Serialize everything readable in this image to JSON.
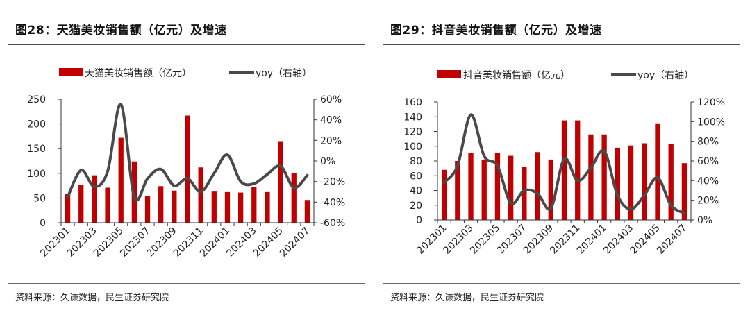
{
  "colors": {
    "bar": "#c00000",
    "line": "#4a4a4a",
    "axis": "#333333",
    "rule": "#4d4d4d"
  },
  "panels": [
    {
      "id": "left",
      "title": "图28：天猫美妆销售额（亿元）及增速",
      "source": "资料来源：久谦数据，民生证券研究院",
      "legend": {
        "bar_label": "天猫美妆销售额（亿元）",
        "line_label": "yoy（右轴）"
      }
    },
    {
      "id": "right",
      "title": "图29：抖音美妆销售额（亿元）及增速",
      "source": "资料来源：久谦数据，民生证券研究院",
      "legend": {
        "bar_label": "抖音美妆销售额（亿元）",
        "line_label": "yoy（右轴）"
      }
    }
  ],
  "chart_data": [
    {
      "type": "bar",
      "title": "图28：天猫美妆销售额（亿元）及增速",
      "categories": [
        "202301",
        "202302",
        "202303",
        "202304",
        "202305",
        "202306",
        "202307",
        "202308",
        "202309",
        "202310",
        "202311",
        "202312",
        "202401",
        "202402",
        "202403",
        "202404",
        "202405",
        "202406",
        "202407"
      ],
      "x_tick_labels": [
        "202301",
        "202303",
        "202305",
        "202307",
        "202309",
        "202311",
        "202401",
        "202403",
        "202405",
        "202407"
      ],
      "series": [
        {
          "name": "天猫美妆销售额（亿元）",
          "kind": "bar",
          "axis": "left",
          "values": [
            58,
            76,
            96,
            71,
            172,
            124,
            54,
            74,
            65,
            217,
            112,
            63,
            62,
            61,
            73,
            62,
            165,
            100,
            46
          ]
        },
        {
          "name": "yoy（右轴）",
          "kind": "line",
          "axis": "right",
          "values": [
            -35,
            -9,
            -25,
            -10,
            55,
            -35,
            -17,
            -8,
            -24,
            -17,
            -30,
            -12,
            6,
            -20,
            -22,
            -13,
            -5,
            -26,
            -14
          ]
        }
      ],
      "y_left": {
        "range": [
          0,
          250
        ],
        "ticks": [
          "0",
          "50",
          "100",
          "150",
          "200",
          "250"
        ]
      },
      "y_right": {
        "range": [
          -60,
          60
        ],
        "ticks": [
          "-60%",
          "-40%",
          "-20%",
          "0%",
          "20%",
          "40%",
          "60%"
        ]
      },
      "grid": false,
      "legend_position": "top"
    },
    {
      "type": "bar",
      "title": "图29：抖音美妆销售额（亿元）及增速",
      "categories": [
        "202301",
        "202302",
        "202303",
        "202304",
        "202305",
        "202306",
        "202307",
        "202308",
        "202309",
        "202310",
        "202311",
        "202312",
        "202401",
        "202402",
        "202403",
        "202404",
        "202405",
        "202406",
        "202407"
      ],
      "x_tick_labels": [
        "202301",
        "202303",
        "202305",
        "202307",
        "202309",
        "202311",
        "202401",
        "202403",
        "202405",
        "202407"
      ],
      "series": [
        {
          "name": "抖音美妆销售额（亿元）",
          "kind": "bar",
          "axis": "left",
          "values": [
            68,
            80,
            91,
            82,
            91,
            87,
            72,
            92,
            82,
            135,
            135,
            116,
            116,
            98,
            101,
            104,
            131,
            103,
            77
          ]
        },
        {
          "name": "yoy（右轴）",
          "kind": "line",
          "axis": "right",
          "values": [
            38,
            55,
            107,
            65,
            55,
            17,
            30,
            27,
            12,
            62,
            40,
            53,
            70,
            25,
            11,
            25,
            43,
            15,
            7
          ]
        }
      ],
      "y_left": {
        "range": [
          0,
          160
        ],
        "ticks": [
          "0",
          "20",
          "40",
          "60",
          "80",
          "100",
          "120",
          "140",
          "160"
        ]
      },
      "y_right": {
        "range": [
          0,
          120
        ],
        "ticks": [
          "0%",
          "20%",
          "40%",
          "60%",
          "80%",
          "100%",
          "120%"
        ]
      },
      "grid": false,
      "legend_position": "top"
    }
  ]
}
